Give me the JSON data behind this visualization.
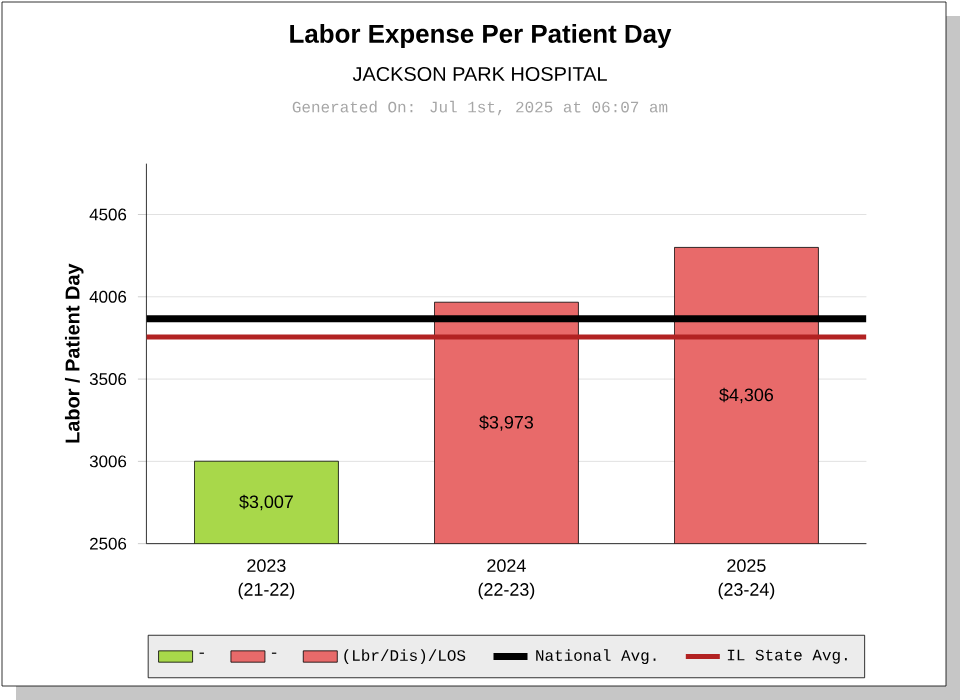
{
  "chart_data": {
    "type": "bar",
    "title": "Labor Expense Per Patient Day",
    "subtitle": "JACKSON PARK HOSPITAL",
    "annotations": [
      "Generated On: Jul 1st, 2025 at 06:07 am"
    ],
    "ylabel": "Labor / Patient Day",
    "categories": [
      "2023 (21-22)",
      "2024 (22-23)",
      "2025 (23-24)"
    ],
    "series": [
      {
        "name": "-",
        "color": "#a8d84a",
        "values": [
          3007,
          null,
          null
        ],
        "value_labels": [
          "$3,007",
          null,
          null
        ]
      },
      {
        "name": "-",
        "color": "#e86a6a",
        "values": [
          null,
          3973,
          null
        ],
        "value_labels": [
          null,
          "$3,973",
          null
        ]
      },
      {
        "name": "(Lbr/Dis)/LOS",
        "color": "#e86a6a",
        "values": [
          null,
          null,
          4306
        ],
        "value_labels": [
          null,
          null,
          "$4,306"
        ]
      }
    ],
    "ylim": [
      2506,
      4815
    ],
    "yticks": [
      2506,
      3006,
      3506,
      4006,
      4506
    ],
    "grid": "y",
    "legend": "bottom",
    "ref_lines": [
      {
        "axis": "y",
        "value": 3872,
        "label": "National Avg.",
        "color": "#000000"
      },
      {
        "axis": "y",
        "value": 3762,
        "label": "IL State Avg.",
        "color": "#b22222"
      }
    ]
  }
}
